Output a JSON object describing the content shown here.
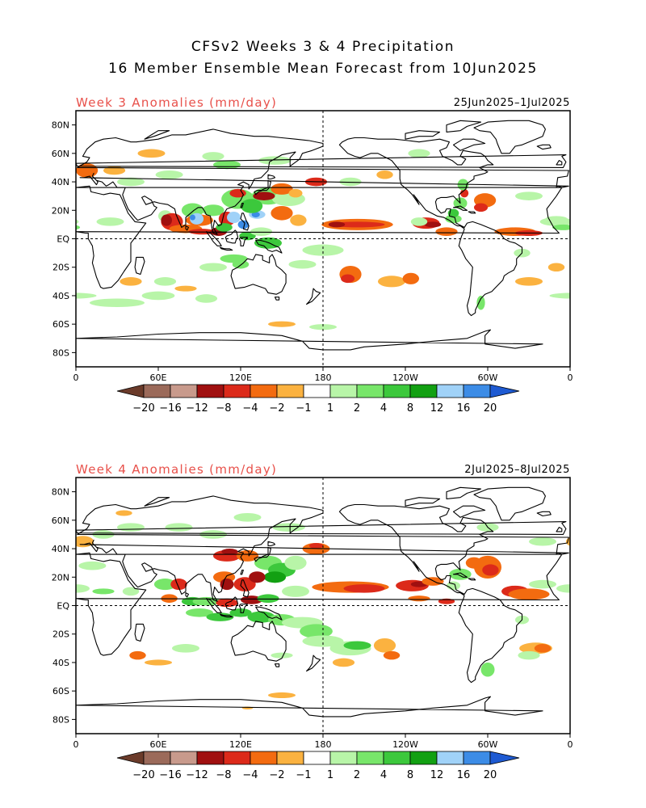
{
  "title": {
    "line1": "CFSv2 Weeks 3 & 4 Precipitation",
    "line2": "16 Member Ensemble Mean Forecast from 10Jun2025"
  },
  "colors": {
    "negative_label": "#e8504a",
    "ocean": "#ffffff",
    "coast": "#000000"
  },
  "panels": [
    {
      "label": "Week 3 Anomalies (mm/day)",
      "dates": "25Jun2025–1Jul2025",
      "lat_ticks": [
        "80N",
        "60N",
        "40N",
        "20N",
        "EQ",
        "20S",
        "40S",
        "60S",
        "80S"
      ],
      "lon_ticks": [
        "0",
        "60E",
        "120E",
        "180",
        "120W",
        "60W",
        "0"
      ]
    },
    {
      "label": "Week 4 Anomalies (mm/day)",
      "dates": "2Jul2025–8Jul2025",
      "lat_ticks": [
        "80N",
        "60N",
        "40N",
        "20N",
        "EQ",
        "20S",
        "40S",
        "60S",
        "80S"
      ],
      "lon_ticks": [
        "0",
        "60E",
        "120E",
        "180",
        "120W",
        "60W",
        "0"
      ]
    }
  ],
  "colorbar": {
    "labels": [
      "−20",
      "−16",
      "−12",
      "−8",
      "−4",
      "−2",
      "−1",
      "1",
      "2",
      "4",
      "8",
      "12",
      "16",
      "20"
    ],
    "colors": [
      "#6b3b2a",
      "#9b6a5a",
      "#c89a8c",
      "#a01010",
      "#dc2a1a",
      "#f36b10",
      "#fbb240",
      "#ffffff",
      "#b8f5a8",
      "#78e66a",
      "#3cc83c",
      "#12a012",
      "#a0d2f8",
      "#3c8ce6",
      "#1e5ad2"
    ]
  }
}
